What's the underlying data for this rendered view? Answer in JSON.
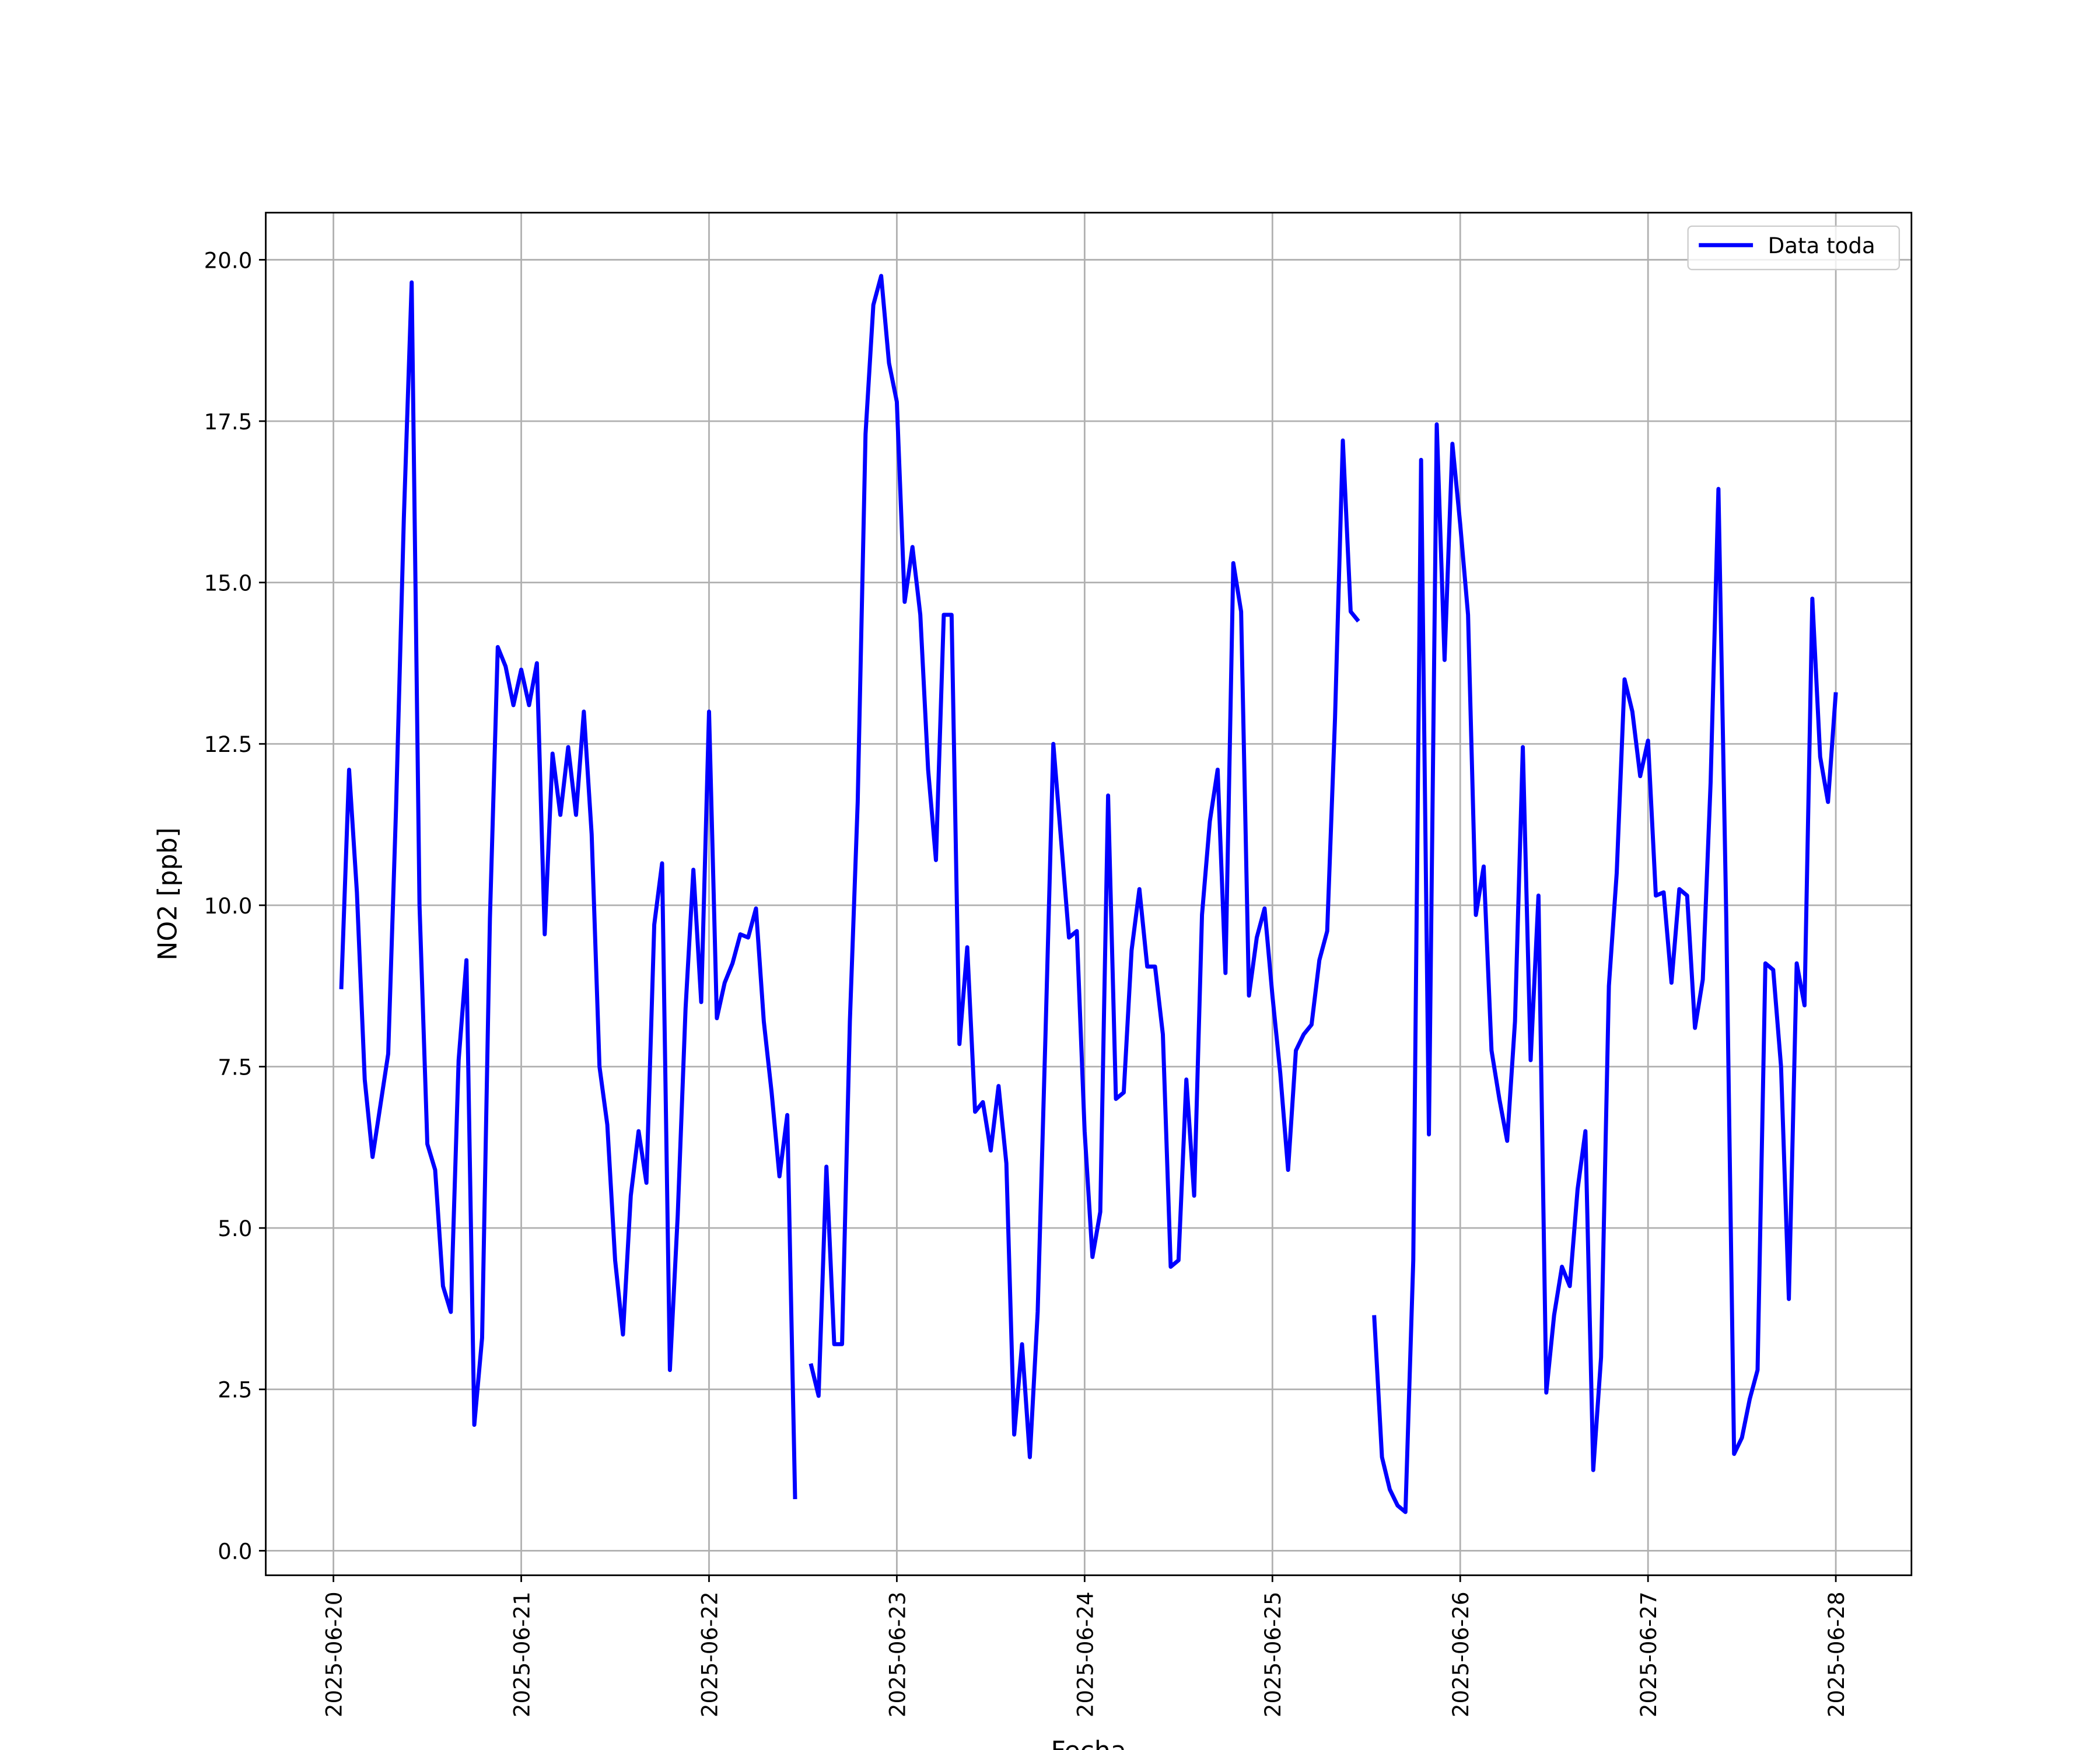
{
  "chart_data": {
    "type": "line",
    "xlabel": "Fecha",
    "ylabel": "NO2 [ppb]",
    "x": [
      "2025-06-20 01:00",
      "2025-06-20 02:00",
      "2025-06-20 03:00",
      "2025-06-20 04:00",
      "2025-06-20 05:00",
      "2025-06-20 06:00",
      "2025-06-20 07:00",
      "2025-06-20 08:00",
      "2025-06-20 09:00",
      "2025-06-20 10:00",
      "2025-06-20 11:00",
      "2025-06-20 12:00",
      "2025-06-20 13:00",
      "2025-06-20 14:00",
      "2025-06-20 15:00",
      "2025-06-20 16:00",
      "2025-06-20 17:00",
      "2025-06-20 18:00",
      "2025-06-20 19:00",
      "2025-06-20 20:00",
      "2025-06-20 21:00",
      "2025-06-20 22:00",
      "2025-06-20 23:00",
      "2025-06-21 00:00",
      "2025-06-21 01:00",
      "2025-06-21 02:00",
      "2025-06-21 03:00",
      "2025-06-21 04:00",
      "2025-06-21 05:00",
      "2025-06-21 06:00",
      "2025-06-21 07:00",
      "2025-06-21 08:00",
      "2025-06-21 09:00",
      "2025-06-21 10:00",
      "2025-06-21 11:00",
      "2025-06-21 12:00",
      "2025-06-21 13:00",
      "2025-06-21 14:00",
      "2025-06-21 15:00",
      "2025-06-21 16:00",
      "2025-06-21 17:00",
      "2025-06-21 18:00",
      "2025-06-21 19:00",
      "2025-06-21 20:00",
      "2025-06-21 21:00",
      "2025-06-21 22:00",
      "2025-06-21 23:00",
      "2025-06-22 00:00",
      "2025-06-22 01:00",
      "2025-06-22 02:00",
      "2025-06-22 03:00",
      "2025-06-22 04:00",
      "2025-06-22 05:00",
      "2025-06-22 06:00",
      "2025-06-22 07:00",
      "2025-06-22 08:00",
      "2025-06-22 09:00",
      "2025-06-22 10:00",
      "2025-06-22 11:00",
      "2025-06-22 12:00",
      "2025-06-22 13:00",
      "2025-06-22 14:00",
      "2025-06-22 15:00",
      "2025-06-22 16:00",
      "2025-06-22 17:00",
      "2025-06-22 18:00",
      "2025-06-22 19:00",
      "2025-06-22 20:00",
      "2025-06-22 21:00",
      "2025-06-22 22:00",
      "2025-06-22 23:00",
      "2025-06-23 00:00",
      "2025-06-23 01:00",
      "2025-06-23 02:00",
      "2025-06-23 03:00",
      "2025-06-23 04:00",
      "2025-06-23 05:00",
      "2025-06-23 06:00",
      "2025-06-23 07:00",
      "2025-06-23 08:00",
      "2025-06-23 09:00",
      "2025-06-23 10:00",
      "2025-06-23 11:00",
      "2025-06-23 12:00",
      "2025-06-23 13:00",
      "2025-06-23 14:00",
      "2025-06-23 15:00",
      "2025-06-23 16:00",
      "2025-06-23 17:00",
      "2025-06-23 18:00",
      "2025-06-23 19:00",
      "2025-06-23 20:00",
      "2025-06-23 21:00",
      "2025-06-23 22:00",
      "2025-06-23 23:00",
      "2025-06-24 00:00",
      "2025-06-24 01:00",
      "2025-06-24 02:00",
      "2025-06-24 03:00",
      "2025-06-24 04:00",
      "2025-06-24 05:00",
      "2025-06-24 06:00",
      "2025-06-24 07:00",
      "2025-06-24 08:00",
      "2025-06-24 09:00",
      "2025-06-24 10:00",
      "2025-06-24 11:00",
      "2025-06-24 12:00",
      "2025-06-24 13:00",
      "2025-06-24 14:00",
      "2025-06-24 15:00",
      "2025-06-24 16:00",
      "2025-06-24 17:00",
      "2025-06-24 18:00",
      "2025-06-24 19:00",
      "2025-06-24 20:00",
      "2025-06-24 21:00",
      "2025-06-24 22:00",
      "2025-06-24 23:00",
      "2025-06-25 00:00",
      "2025-06-25 01:00",
      "2025-06-25 02:00",
      "2025-06-25 03:00",
      "2025-06-25 04:00",
      "2025-06-25 05:00",
      "2025-06-25 06:00",
      "2025-06-25 07:00",
      "2025-06-25 08:00",
      "2025-06-25 09:00",
      "2025-06-25 10:00",
      "2025-06-25 11:00",
      "2025-06-25 12:00",
      "2025-06-25 13:00",
      "2025-06-25 14:00",
      "2025-06-25 15:00",
      "2025-06-25 16:00",
      "2025-06-25 17:00",
      "2025-06-25 18:00",
      "2025-06-25 19:00",
      "2025-06-25 20:00",
      "2025-06-25 21:00",
      "2025-06-25 22:00",
      "2025-06-25 23:00",
      "2025-06-26 00:00",
      "2025-06-26 01:00",
      "2025-06-26 02:00",
      "2025-06-26 03:00",
      "2025-06-26 04:00",
      "2025-06-26 05:00",
      "2025-06-26 06:00",
      "2025-06-26 07:00",
      "2025-06-26 08:00",
      "2025-06-26 09:00",
      "2025-06-26 10:00",
      "2025-06-26 11:00",
      "2025-06-26 12:00",
      "2025-06-26 13:00",
      "2025-06-26 14:00",
      "2025-06-26 15:00",
      "2025-06-26 16:00",
      "2025-06-26 17:00",
      "2025-06-26 18:00",
      "2025-06-26 19:00",
      "2025-06-26 20:00",
      "2025-06-26 21:00",
      "2025-06-26 22:00",
      "2025-06-26 23:00",
      "2025-06-27 00:00",
      "2025-06-27 01:00",
      "2025-06-27 02:00",
      "2025-06-27 03:00",
      "2025-06-27 04:00",
      "2025-06-27 05:00",
      "2025-06-27 06:00",
      "2025-06-27 07:00",
      "2025-06-27 08:00",
      "2025-06-27 09:00",
      "2025-06-27 10:00",
      "2025-06-27 11:00",
      "2025-06-27 12:00",
      "2025-06-27 13:00",
      "2025-06-27 14:00",
      "2025-06-27 15:00",
      "2025-06-27 16:00",
      "2025-06-27 17:00",
      "2025-06-27 18:00",
      "2025-06-27 19:00",
      "2025-06-27 20:00",
      "2025-06-27 21:00",
      "2025-06-27 22:00",
      "2025-06-27 23:00",
      "2025-06-28 00:00"
    ],
    "series": [
      {
        "name": "Data toda",
        "color": "#0000ff",
        "values": [
          8.7,
          12.1,
          10.2,
          7.3,
          6.1,
          6.9,
          7.7,
          11.5,
          16.0,
          19.65,
          10.0,
          6.3,
          5.9,
          4.1,
          3.7,
          7.6,
          9.15,
          1.95,
          3.3,
          9.8,
          14.0,
          13.7,
          13.1,
          13.65,
          13.1,
          13.75,
          9.55,
          12.35,
          11.4,
          12.45,
          11.4,
          13.0,
          11.1,
          7.5,
          6.6,
          4.5,
          3.35,
          5.5,
          6.5,
          5.7,
          9.7,
          10.65,
          2.8,
          5.2,
          8.4,
          10.55,
          8.5,
          13.0,
          8.25,
          8.8,
          9.1,
          9.55,
          9.5,
          9.95,
          8.2,
          7.1,
          5.8,
          6.75,
          0.8,
          null,
          2.9,
          2.4,
          5.95,
          3.2,
          3.2,
          8.2,
          11.6,
          17.3,
          19.3,
          19.75,
          18.4,
          17.8,
          14.7,
          15.55,
          14.5,
          12.1,
          10.7,
          14.5,
          14.5,
          7.85,
          9.35,
          6.8,
          6.95,
          6.2,
          7.2,
          6.0,
          1.8,
          3.2,
          1.45,
          3.7,
          8.0,
          12.5,
          11.0,
          9.5,
          9.6,
          6.5,
          4.55,
          5.25,
          11.7,
          7.0,
          7.1,
          9.3,
          10.25,
          9.05,
          9.05,
          8.0,
          4.4,
          4.5,
          7.3,
          5.5,
          9.85,
          11.3,
          12.1,
          8.95,
          15.3,
          14.55,
          8.6,
          9.5,
          9.95,
          8.6,
          7.4,
          5.9,
          7.75,
          8.0,
          8.15,
          9.15,
          9.6,
          12.9,
          17.2,
          14.55,
          14.4,
          null,
          3.65,
          1.45,
          0.95,
          0.7,
          0.6,
          4.5,
          16.9,
          6.45,
          17.45,
          13.8,
          17.15,
          15.9,
          14.5,
          9.85,
          10.6,
          7.75,
          7.0,
          6.35,
          8.2,
          12.45,
          7.6,
          10.15,
          2.45,
          3.65,
          4.4,
          4.1,
          5.6,
          6.5,
          1.25,
          3.0,
          8.75,
          10.5,
          13.5,
          13.0,
          12.0,
          12.55,
          10.15,
          10.2,
          8.8,
          10.25,
          10.15,
          8.1,
          8.85,
          11.9,
          16.45,
          9.8,
          1.5,
          1.75,
          2.35,
          2.8,
          9.1,
          9.0,
          7.5,
          3.9,
          9.1,
          8.45,
          14.75,
          12.3,
          11.6,
          13.3
        ]
      }
    ],
    "xlim": [
      "2025-06-19 15:21",
      "2025-06-28 09:40"
    ],
    "xticks": [
      "2025-06-20",
      "2025-06-21",
      "2025-06-22",
      "2025-06-23",
      "2025-06-24",
      "2025-06-25",
      "2025-06-26",
      "2025-06-27",
      "2025-06-28"
    ],
    "ylim": [
      -0.38,
      20.73
    ],
    "yticks": [
      {
        "value": 0,
        "label": "0.0"
      },
      {
        "value": 2.5,
        "label": "2.5"
      },
      {
        "value": 5,
        "label": "5.0"
      },
      {
        "value": 7.5,
        "label": "7.5"
      },
      {
        "value": 10,
        "label": "10.0"
      },
      {
        "value": 12.5,
        "label": "12.5"
      },
      {
        "value": 15,
        "label": "15.0"
      },
      {
        "value": 17.5,
        "label": "17.5"
      },
      {
        "value": 20,
        "label": "20.0"
      }
    ],
    "grid": true,
    "legend": "upper right"
  }
}
